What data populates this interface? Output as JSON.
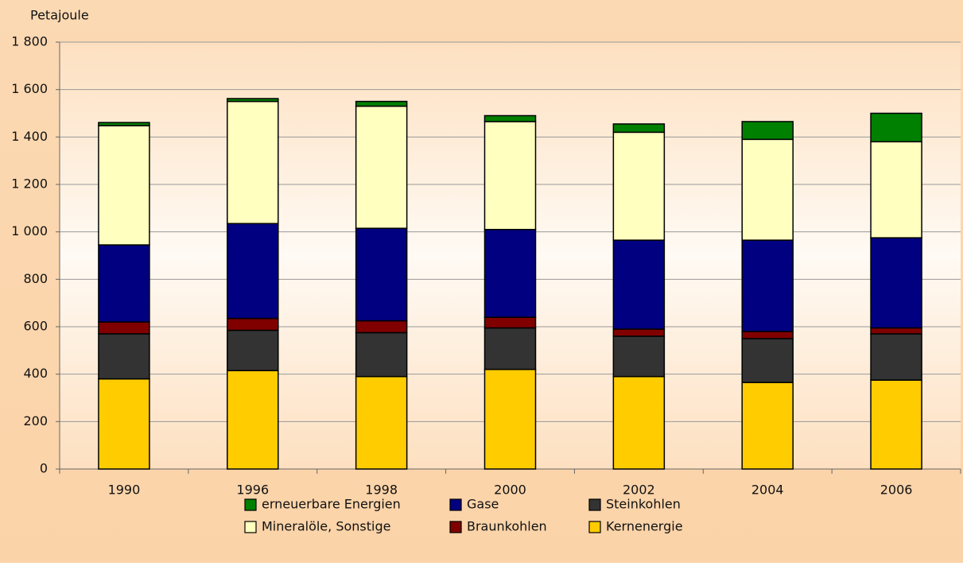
{
  "chart_data": {
    "type": "stacked-bar",
    "y_label": "Petajoule",
    "categories": [
      "1990",
      "1996",
      "1998",
      "2000",
      "2002",
      "2004",
      "2006"
    ],
    "series": [
      {
        "name": "Kernenergie",
        "color": "#ffcc00",
        "values": [
          380,
          415,
          390,
          420,
          390,
          365,
          375
        ]
      },
      {
        "name": "Steinkohlen",
        "color": "#333333",
        "values": [
          190,
          170,
          185,
          175,
          170,
          185,
          195
        ]
      },
      {
        "name": "Braunkohlen",
        "color": "#800000",
        "values": [
          50,
          50,
          50,
          45,
          30,
          30,
          25
        ]
      },
      {
        "name": "Gase",
        "color": "#000080",
        "values": [
          325,
          400,
          390,
          370,
          375,
          385,
          380
        ]
      },
      {
        "name": "Mineralöle, Sonstige",
        "color": "#ffffc0",
        "values": [
          503,
          515,
          515,
          455,
          455,
          425,
          405
        ]
      },
      {
        "name": "erneuerbare Energien",
        "color": "#008000",
        "values": [
          13,
          12,
          20,
          25,
          35,
          75,
          120
        ]
      }
    ],
    "ylim": [
      0,
      1800
    ],
    "yticks": [
      0,
      200,
      400,
      600,
      800,
      {
        "value": 1000,
        "label": "1 000"
      },
      {
        "value": 1200,
        "label": "1 200"
      },
      {
        "value": 1400,
        "label": "1 400"
      },
      {
        "value": 1600,
        "label": "1 600"
      },
      {
        "value": 1800,
        "label": "1 800"
      }
    ],
    "grid": true
  }
}
